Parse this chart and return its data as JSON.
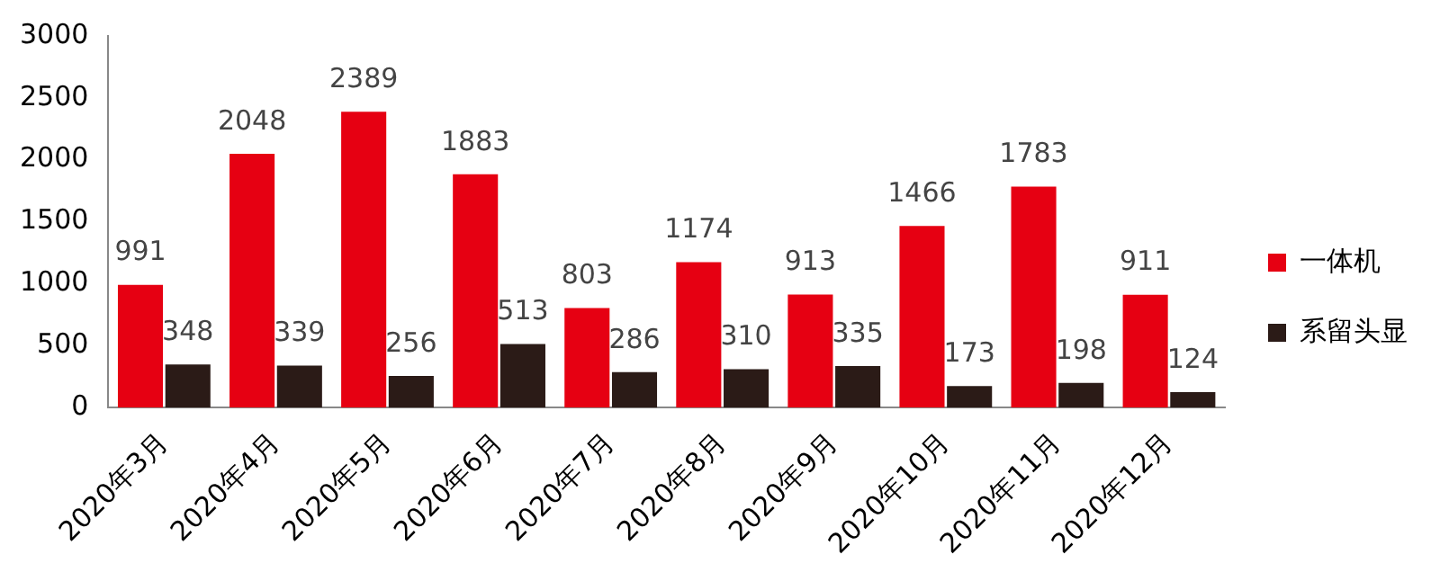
{
  "chart_data": {
    "type": "bar",
    "categories": [
      "2020年3月",
      "2020年4月",
      "2020年5月",
      "2020年6月",
      "2020年7月",
      "2020年8月",
      "2020年9月",
      "2020年10月",
      "2020年11月",
      "2020年12月"
    ],
    "series": [
      {
        "name": "一体机",
        "color": "#e60012",
        "values": [
          991,
          2048,
          2389,
          1883,
          803,
          1174,
          913,
          1466,
          1783,
          911
        ]
      },
      {
        "name": "系留头显",
        "color": "#2b1b17",
        "values": [
          348,
          339,
          256,
          513,
          286,
          310,
          335,
          173,
          198,
          124
        ]
      }
    ],
    "ylim": [
      0,
      3000
    ],
    "yticks": [
      0,
      500,
      1000,
      1500,
      2000,
      2500,
      3000
    ],
    "grid": false,
    "legend": "right",
    "data_labels": true
  }
}
